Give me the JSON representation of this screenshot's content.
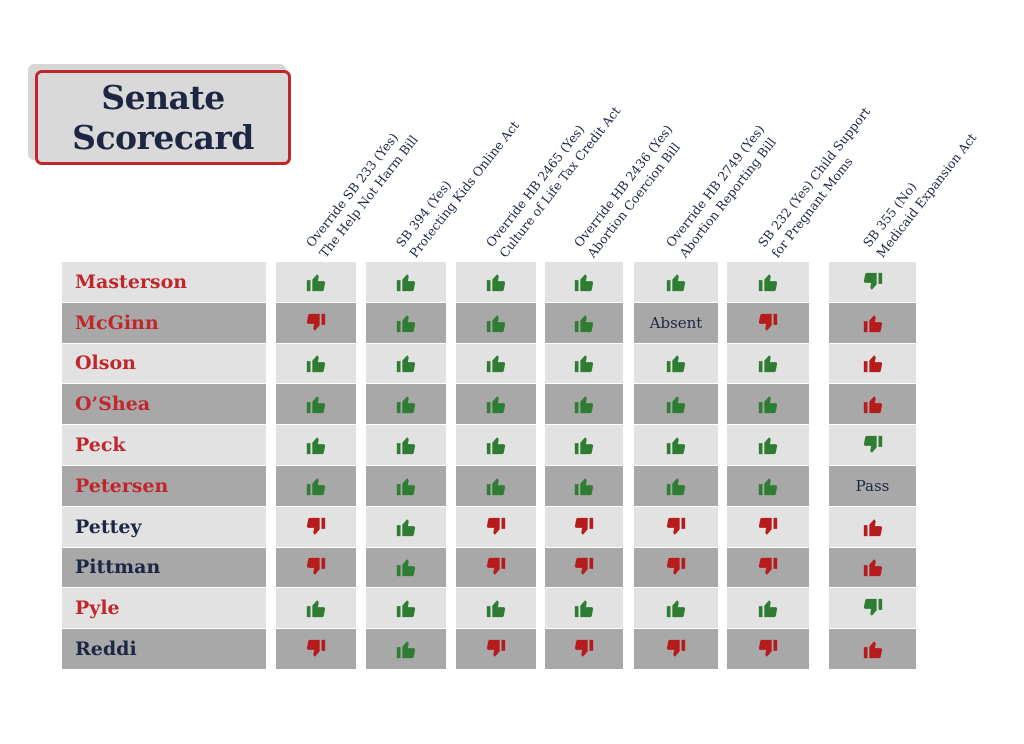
{
  "title": {
    "line1": "Senate",
    "line2": "Scorecard"
  },
  "colors": {
    "republican": "#c0272d",
    "democrat": "#1d2744",
    "yes": "#2e7d32",
    "no": "#b71c1c",
    "row_light": "#e2e2e2",
    "row_dark": "#a8a8a8"
  },
  "chart_data": {
    "type": "table",
    "title": "Senate Scorecard",
    "columns": [
      {
        "line1": "Override SB 233 (Yes)",
        "line2": "The Help Not Harm Bill"
      },
      {
        "line1": "SB 394 (Yes)",
        "line2": "Protecting Kids Online Act"
      },
      {
        "line1": "Override HB 2465 (Yes)",
        "line2": "Culture of Life Tax Credit Act"
      },
      {
        "line1": "Override HB 2436 (Yes)",
        "line2": "Abortion Coercion Bill"
      },
      {
        "line1": "Override HB 2749 (Yes)",
        "line2": "Abortion Reporting Bill"
      },
      {
        "line1": "SB 232 (Yes) Child Support",
        "line2": "for Pregnant Moms"
      },
      {
        "line1": "SB 355 (No)",
        "line2": "Medicaid Expansion Act"
      }
    ],
    "rows": [
      {
        "name": "Masterson",
        "party": "R",
        "votes": [
          "up-green",
          "up-green",
          "up-green",
          "up-green",
          "up-green",
          "up-green",
          "down-green"
        ]
      },
      {
        "name": "McGinn",
        "party": "R",
        "votes": [
          "down-red",
          "up-green",
          "up-green",
          "up-green",
          "Absent",
          "down-red",
          "up-red"
        ]
      },
      {
        "name": "Olson",
        "party": "R",
        "votes": [
          "up-green",
          "up-green",
          "up-green",
          "up-green",
          "up-green",
          "up-green",
          "up-red"
        ]
      },
      {
        "name": "O’Shea",
        "party": "R",
        "votes": [
          "up-green",
          "up-green",
          "up-green",
          "up-green",
          "up-green",
          "up-green",
          "up-red"
        ]
      },
      {
        "name": "Peck",
        "party": "R",
        "votes": [
          "up-green",
          "up-green",
          "up-green",
          "up-green",
          "up-green",
          "up-green",
          "down-green"
        ]
      },
      {
        "name": "Petersen",
        "party": "R",
        "votes": [
          "up-green",
          "up-green",
          "up-green",
          "up-green",
          "up-green",
          "up-green",
          "Pass"
        ]
      },
      {
        "name": "Pettey",
        "party": "D",
        "votes": [
          "down-red",
          "up-green",
          "down-red",
          "down-red",
          "down-red",
          "down-red",
          "up-red"
        ]
      },
      {
        "name": "Pittman",
        "party": "D",
        "votes": [
          "down-red",
          "up-green",
          "down-red",
          "down-red",
          "down-red",
          "down-red",
          "up-red"
        ]
      },
      {
        "name": "Pyle",
        "party": "R",
        "votes": [
          "up-green",
          "up-green",
          "up-green",
          "up-green",
          "up-green",
          "up-green",
          "down-green"
        ]
      },
      {
        "name": "Reddi",
        "party": "D",
        "votes": [
          "down-red",
          "up-green",
          "down-red",
          "down-red",
          "down-red",
          "down-red",
          "up-red"
        ]
      }
    ]
  }
}
